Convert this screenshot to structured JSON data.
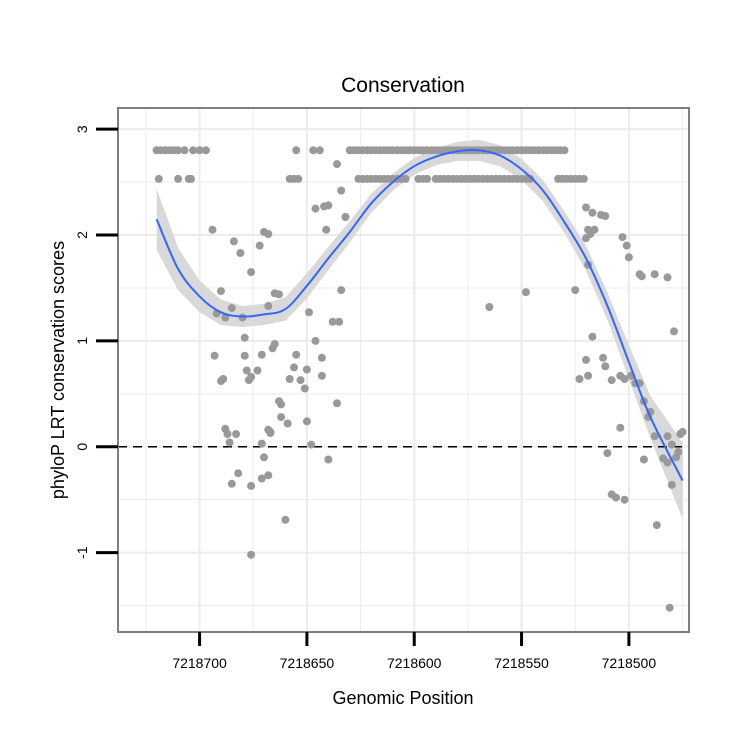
{
  "chart_data": {
    "type": "scatter",
    "title": "Conservation",
    "xlabel": "Genomic Position",
    "ylabel": "phyloP LRT conservation scores",
    "x_reversed": true,
    "xlim": [
      7218472,
      7218738
    ],
    "ylim": [
      -1.75,
      3.2
    ],
    "x_ticks": [
      7218700,
      7218650,
      7218600,
      7218550,
      7218500
    ],
    "x_tick_labels": [
      "7218700",
      "7218650",
      "7218600",
      "7218550",
      "7218500"
    ],
    "y_ticks": [
      3,
      2,
      1,
      0,
      -1
    ],
    "y_tick_labels": [
      "3",
      "2",
      "1",
      "0",
      "-1"
    ],
    "grid": true,
    "reference_line": {
      "y": 0,
      "style": "dashed"
    },
    "colors": {
      "points": "#999999",
      "smooth_line": "#3366ff",
      "ribbon": "#d9d9d9",
      "grid": "#ececec",
      "panel_border": "#7f7f7f"
    },
    "series": [
      {
        "name": "scores",
        "points": [
          [
            7218720,
            2.8
          ],
          [
            7218718,
            2.8
          ],
          [
            7218716,
            2.8
          ],
          [
            7218714,
            2.8
          ],
          [
            7218712,
            2.8
          ],
          [
            7218710,
            2.8
          ],
          [
            7218707,
            2.8
          ],
          [
            7218703,
            2.8
          ],
          [
            7218700,
            2.8
          ],
          [
            7218697,
            2.8
          ],
          [
            7218719,
            2.53
          ],
          [
            7218710,
            2.53
          ],
          [
            7218705,
            2.53
          ],
          [
            7218704,
            2.53
          ],
          [
            7218655,
            2.8
          ],
          [
            7218630,
            2.8
          ],
          [
            7218628,
            2.8
          ],
          [
            7218626,
            2.8
          ],
          [
            7218624,
            2.8
          ],
          [
            7218622,
            2.8
          ],
          [
            7218620,
            2.8
          ],
          [
            7218618,
            2.8
          ],
          [
            7218616,
            2.8
          ],
          [
            7218614,
            2.8
          ],
          [
            7218612,
            2.8
          ],
          [
            7218610,
            2.8
          ],
          [
            7218608,
            2.8
          ],
          [
            7218606,
            2.8
          ],
          [
            7218604,
            2.8
          ],
          [
            7218602,
            2.8
          ],
          [
            7218600,
            2.8
          ],
          [
            7218598,
            2.8
          ],
          [
            7218596,
            2.8
          ],
          [
            7218594,
            2.8
          ],
          [
            7218592,
            2.8
          ],
          [
            7218590,
            2.8
          ],
          [
            7218588,
            2.8
          ],
          [
            7218586,
            2.8
          ],
          [
            7218584,
            2.8
          ],
          [
            7218582,
            2.8
          ],
          [
            7218580,
            2.8
          ],
          [
            7218578,
            2.8
          ],
          [
            7218576,
            2.8
          ],
          [
            7218574,
            2.8
          ],
          [
            7218572,
            2.8
          ],
          [
            7218570,
            2.8
          ],
          [
            7218568,
            2.8
          ],
          [
            7218566,
            2.8
          ],
          [
            7218564,
            2.8
          ],
          [
            7218562,
            2.8
          ],
          [
            7218560,
            2.8
          ],
          [
            7218558,
            2.8
          ],
          [
            7218556,
            2.8
          ],
          [
            7218554,
            2.8
          ],
          [
            7218552,
            2.8
          ],
          [
            7218550,
            2.8
          ],
          [
            7218548,
            2.8
          ],
          [
            7218546,
            2.8
          ],
          [
            7218544,
            2.8
          ],
          [
            7218542,
            2.8
          ],
          [
            7218540,
            2.8
          ],
          [
            7218538,
            2.8
          ],
          [
            7218536,
            2.8
          ],
          [
            7218534,
            2.8
          ],
          [
            7218532,
            2.8
          ],
          [
            7218530,
            2.8
          ],
          [
            7218658,
            2.53
          ],
          [
            7218656,
            2.53
          ],
          [
            7218654,
            2.53
          ],
          [
            7218626,
            2.53
          ],
          [
            7218624,
            2.53
          ],
          [
            7218622,
            2.53
          ],
          [
            7218620,
            2.53
          ],
          [
            7218618,
            2.53
          ],
          [
            7218616,
            2.53
          ],
          [
            7218614,
            2.53
          ],
          [
            7218612,
            2.53
          ],
          [
            7218610,
            2.53
          ],
          [
            7218608,
            2.53
          ],
          [
            7218606,
            2.53
          ],
          [
            7218604,
            2.53
          ],
          [
            7218598,
            2.53
          ],
          [
            7218596,
            2.53
          ],
          [
            7218594,
            2.53
          ],
          [
            7218590,
            2.53
          ],
          [
            7218588,
            2.53
          ],
          [
            7218586,
            2.53
          ],
          [
            7218584,
            2.53
          ],
          [
            7218582,
            2.53
          ],
          [
            7218580,
            2.53
          ],
          [
            7218578,
            2.53
          ],
          [
            7218576,
            2.53
          ],
          [
            7218574,
            2.53
          ],
          [
            7218572,
            2.53
          ],
          [
            7218570,
            2.53
          ],
          [
            7218568,
            2.53
          ],
          [
            7218566,
            2.53
          ],
          [
            7218564,
            2.53
          ],
          [
            7218562,
            2.53
          ],
          [
            7218560,
            2.53
          ],
          [
            7218558,
            2.53
          ],
          [
            7218556,
            2.53
          ],
          [
            7218554,
            2.53
          ],
          [
            7218552,
            2.53
          ],
          [
            7218550,
            2.53
          ],
          [
            7218548,
            2.53
          ],
          [
            7218546,
            2.53
          ],
          [
            7218533,
            2.53
          ],
          [
            7218531,
            2.53
          ],
          [
            7218529,
            2.53
          ],
          [
            7218527,
            2.53
          ],
          [
            7218525,
            2.53
          ],
          [
            7218523,
            2.53
          ],
          [
            7218521,
            2.53
          ],
          [
            7218647,
            2.8
          ],
          [
            7218644,
            2.8
          ],
          [
            7218636,
            2.67
          ],
          [
            7218634,
            2.42
          ],
          [
            7218640,
            2.28
          ],
          [
            7218642,
            2.27
          ],
          [
            7218641,
            2.05
          ],
          [
            7218646,
            2.25
          ],
          [
            7218632,
            2.17
          ],
          [
            7218694,
            2.05
          ],
          [
            7218684,
            1.94
          ],
          [
            7218681,
            1.83
          ],
          [
            7218676,
            1.65
          ],
          [
            7218670,
            2.03
          ],
          [
            7218668,
            2.01
          ],
          [
            7218672,
            1.9
          ],
          [
            7218690,
            1.47
          ],
          [
            7218692,
            1.26
          ],
          [
            7218685,
            1.31
          ],
          [
            7218688,
            1.22
          ],
          [
            7218680,
            1.22
          ],
          [
            7218668,
            1.33
          ],
          [
            7218665,
            1.45
          ],
          [
            7218663,
            1.44
          ],
          [
            7218649,
            1.27
          ],
          [
            7218693,
            0.86
          ],
          [
            7218689,
            0.64
          ],
          [
            7218690,
            0.62
          ],
          [
            7218679,
            1.03
          ],
          [
            7218679,
            0.86
          ],
          [
            7218678,
            0.72
          ],
          [
            7218676,
            0.66
          ],
          [
            7218677,
            0.63
          ],
          [
            7218673,
            0.72
          ],
          [
            7218671,
            0.87
          ],
          [
            7218665,
            0.97
          ],
          [
            7218666,
            0.93
          ],
          [
            7218655,
            0.87
          ],
          [
            7218656,
            0.75
          ],
          [
            7218653,
            0.63
          ],
          [
            7218650,
            0.73
          ],
          [
            7218651,
            0.55
          ],
          [
            7218658,
            0.64
          ],
          [
            7218646,
            1
          ],
          [
            7218643,
            0.84
          ],
          [
            7218643,
            0.67
          ],
          [
            7218638,
            1.18
          ],
          [
            7218635,
            1.18
          ],
          [
            7218634,
            1.48
          ],
          [
            7218636,
            0.41
          ],
          [
            7218663,
            0.43
          ],
          [
            7218662,
            0.28
          ],
          [
            7218659,
            0.22
          ],
          [
            7218668,
            0.16
          ],
          [
            7218667,
            0.13
          ],
          [
            7218662,
            0.4
          ],
          [
            7218650,
            0.24
          ],
          [
            7218648,
            0.02
          ],
          [
            7218640,
            -0.12
          ],
          [
            7218688,
            0.17
          ],
          [
            7218687,
            0.12
          ],
          [
            7218686,
            0.04
          ],
          [
            7218683,
            0.12
          ],
          [
            7218671,
            0.03
          ],
          [
            7218667,
            0.14
          ],
          [
            7218670,
            -0.1
          ],
          [
            7218668,
            -0.27
          ],
          [
            7218671,
            -0.3
          ],
          [
            7218682,
            -0.25
          ],
          [
            7218685,
            -0.35
          ],
          [
            7218676,
            -0.37
          ],
          [
            7218660,
            -0.69
          ],
          [
            7218676,
            -1.02
          ],
          [
            7218565,
            1.32
          ],
          [
            7218548,
            1.46
          ],
          [
            7218525,
            1.48
          ],
          [
            7218520,
            2.26
          ],
          [
            7218517,
            2.21
          ],
          [
            7218513,
            2.19
          ],
          [
            7218511,
            2.18
          ],
          [
            7218519,
            2.05
          ],
          [
            7218516,
            2.05
          ],
          [
            7218518,
            2.01
          ],
          [
            7218520,
            1.97
          ],
          [
            7218503,
            1.98
          ],
          [
            7218501,
            1.9
          ],
          [
            7218500,
            1.79
          ],
          [
            7218495,
            1.63
          ],
          [
            7218494,
            1.61
          ],
          [
            7218519,
            1.72
          ],
          [
            7218520,
            0.82
          ],
          [
            7218517,
            1.04
          ],
          [
            7218523,
            0.64
          ],
          [
            7218519,
            0.67
          ],
          [
            7218512,
            0.84
          ],
          [
            7218511,
            0.76
          ],
          [
            7218508,
            0.63
          ],
          [
            7218504,
            0.67
          ],
          [
            7218502,
            0.64
          ],
          [
            7218499,
            0.67
          ],
          [
            7218497,
            0.6
          ],
          [
            7218495,
            0.6
          ],
          [
            7218493,
            0.43
          ],
          [
            7218490,
            0.33
          ],
          [
            7218491,
            0.28
          ],
          [
            7218488,
            0.1
          ],
          [
            7218493,
            -0.12
          ],
          [
            7218484,
            -0.11
          ],
          [
            7218482,
            -0.15
          ],
          [
            7218478,
            -0.1
          ],
          [
            7218504,
            0.18
          ],
          [
            7218510,
            -0.06
          ],
          [
            7218508,
            -0.45
          ],
          [
            7218506,
            -0.48
          ],
          [
            7218502,
            -0.5
          ],
          [
            7218482,
            0.1
          ],
          [
            7218480,
            0.02
          ],
          [
            7218477,
            -0.05
          ],
          [
            7218476,
            0.12
          ],
          [
            7218475,
            0.14
          ],
          [
            7218480,
            -0.36
          ],
          [
            7218487,
            -0.74
          ],
          [
            7218481,
            -1.52
          ],
          [
            7218482,
            1.6
          ],
          [
            7218488,
            1.63
          ],
          [
            7218479,
            1.09
          ]
        ]
      }
    ],
    "smooth": {
      "name": "loess fit",
      "x": [
        7218720,
        7218710,
        7218700,
        7218690,
        7218680,
        7218670,
        7218660,
        7218650,
        7218640,
        7218630,
        7218620,
        7218610,
        7218600,
        7218590,
        7218580,
        7218570,
        7218560,
        7218550,
        7218540,
        7218530,
        7218520,
        7218510,
        7218500,
        7218490,
        7218475
      ],
      "y": [
        2.15,
        1.68,
        1.42,
        1.27,
        1.23,
        1.25,
        1.3,
        1.52,
        1.78,
        2.03,
        2.3,
        2.5,
        2.65,
        2.74,
        2.79,
        2.8,
        2.75,
        2.62,
        2.42,
        2.12,
        1.78,
        1.33,
        0.8,
        0.28,
        -0.32
      ],
      "lower": [
        1.86,
        1.48,
        1.27,
        1.15,
        1.13,
        1.15,
        1.19,
        1.4,
        1.67,
        1.93,
        2.21,
        2.42,
        2.57,
        2.66,
        2.7,
        2.7,
        2.65,
        2.52,
        2.32,
        2.02,
        1.66,
        1.2,
        0.64,
        0.08,
        -0.68
      ],
      "upper": [
        2.44,
        1.88,
        1.57,
        1.39,
        1.33,
        1.35,
        1.41,
        1.64,
        1.89,
        2.13,
        2.39,
        2.58,
        2.73,
        2.82,
        2.88,
        2.9,
        2.85,
        2.72,
        2.52,
        2.22,
        1.9,
        1.46,
        0.96,
        0.48,
        0.04
      ]
    }
  }
}
